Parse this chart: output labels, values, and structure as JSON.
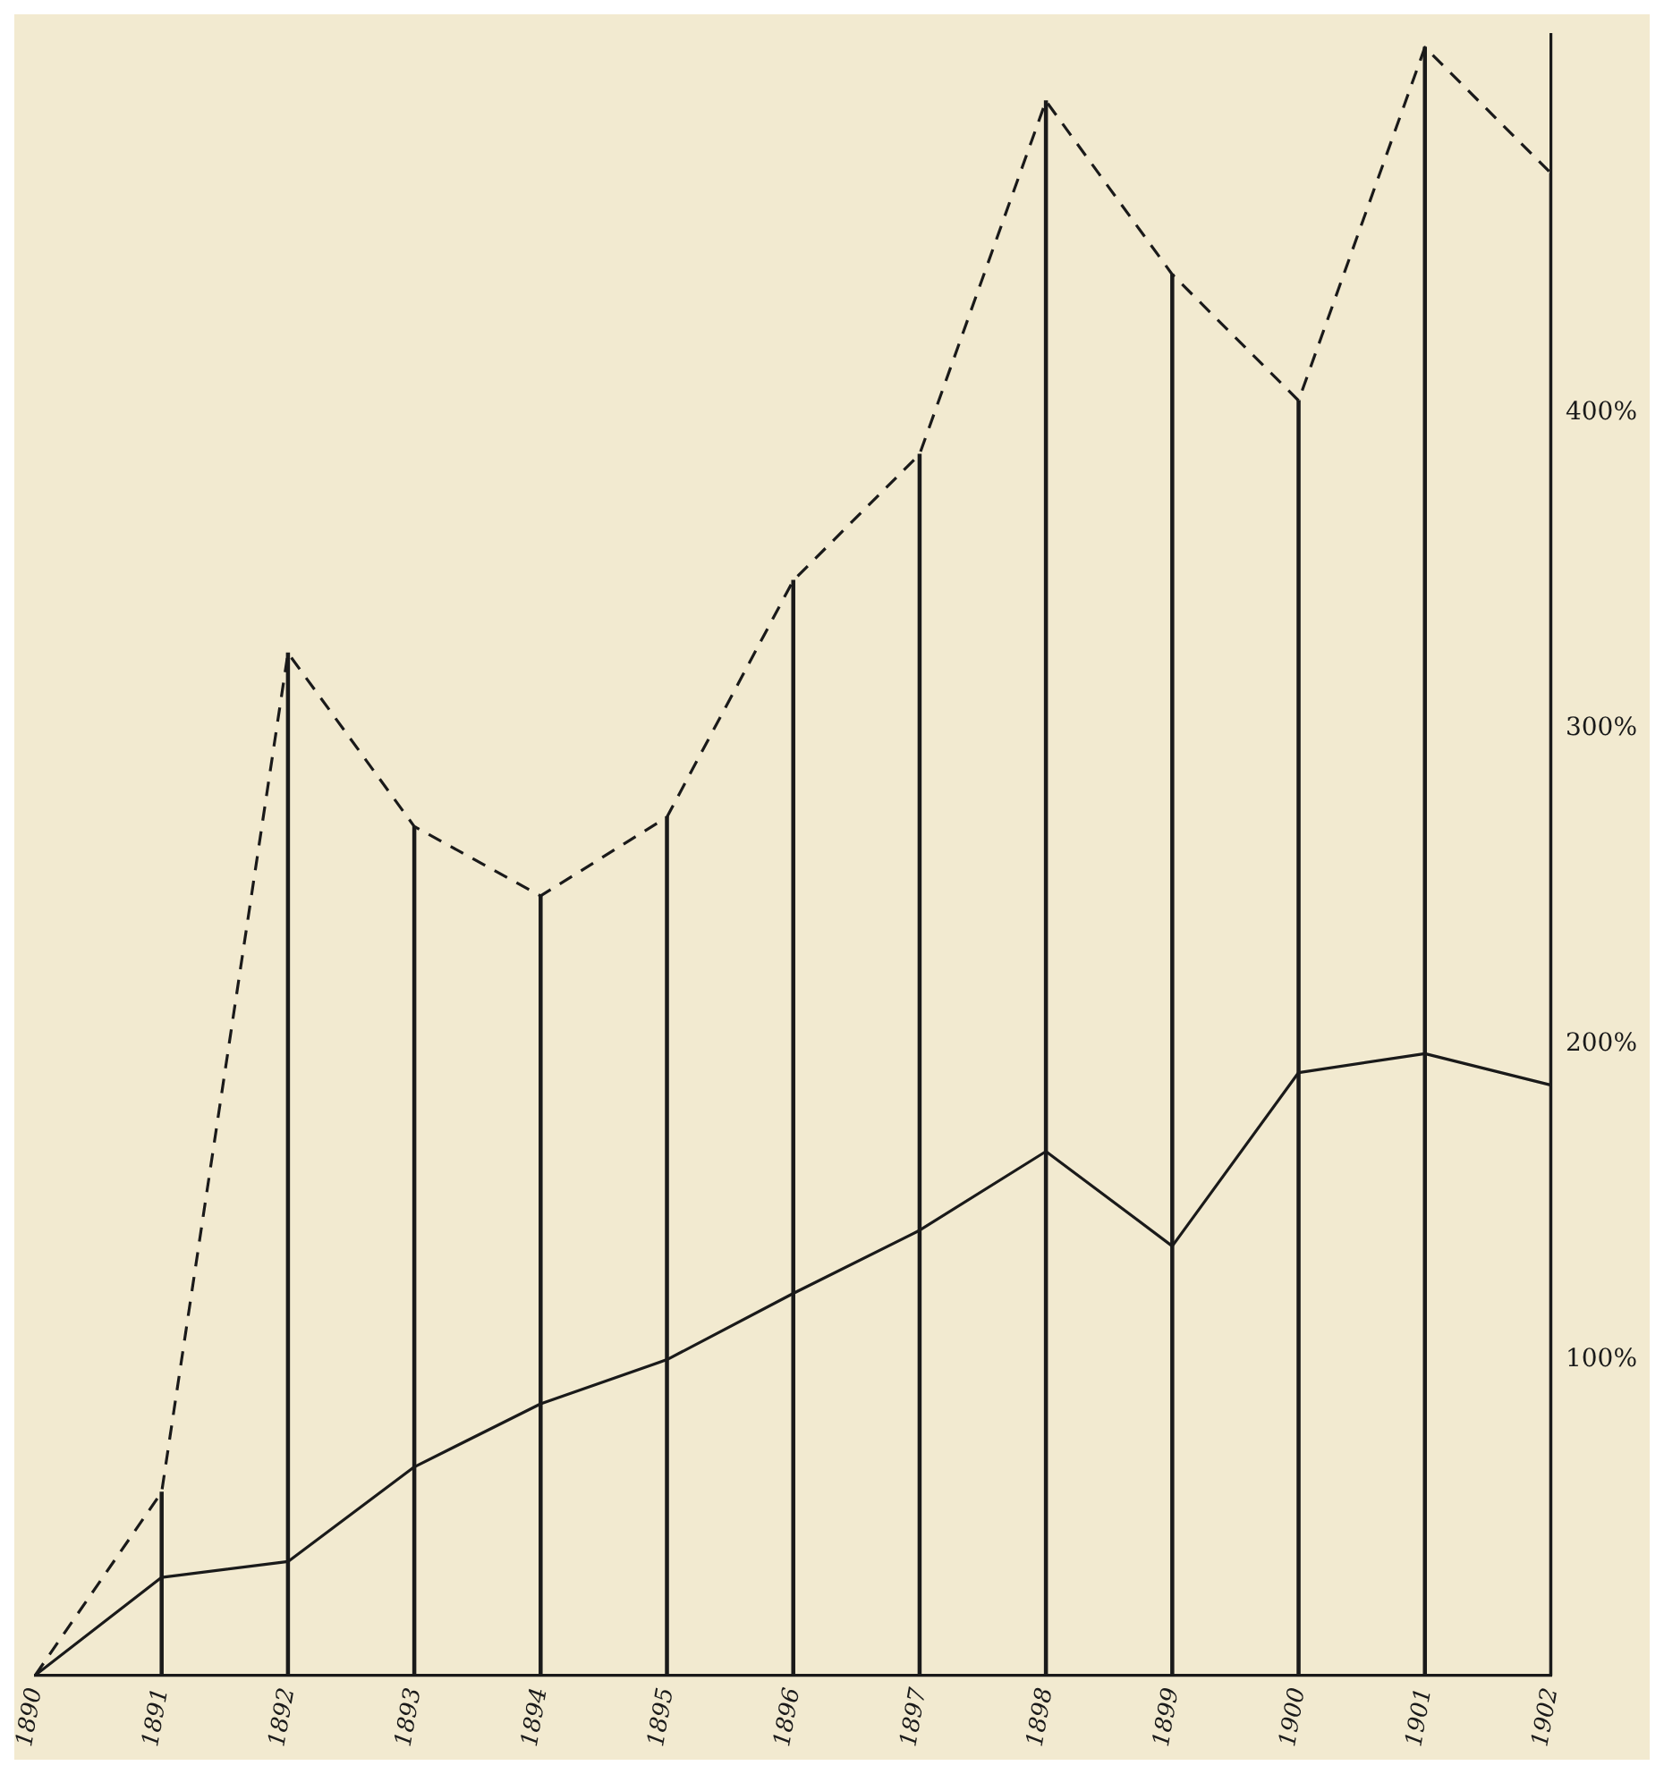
{
  "chart_data": {
    "type": "line",
    "categories": [
      "1890",
      "1891",
      "1892",
      "1893",
      "1894",
      "1895",
      "1896",
      "1897",
      "1898",
      "1899",
      "1900",
      "1901",
      "1902"
    ],
    "series": [
      {
        "color": "#1a1a1a",
        "line_style": "dashed",
        "values": [
          0,
          58,
          324,
          269,
          247,
          272,
          347,
          387,
          499,
          444,
          404,
          516,
          476
        ]
      },
      {
        "color": "#1a1a1a",
        "line_style": "solid",
        "values": [
          0,
          31,
          36,
          66,
          86,
          100,
          121,
          141,
          166,
          136,
          191,
          197,
          187
        ]
      },
      {
        "type": "bar",
        "color": "#1a1a1a",
        "values": [
          0,
          58,
          324,
          269,
          247,
          272,
          347,
          387,
          499,
          444,
          404,
          516,
          476
        ]
      }
    ],
    "ylim": [
      0,
      520
    ],
    "yticks": [
      {
        "value": 100,
        "label": "100%"
      },
      {
        "value": 200,
        "label": "200%"
      },
      {
        "value": 300,
        "label": "300%"
      },
      {
        "value": 400,
        "label": "400%"
      }
    ],
    "grid": false,
    "legend": false,
    "marker": "none"
  }
}
